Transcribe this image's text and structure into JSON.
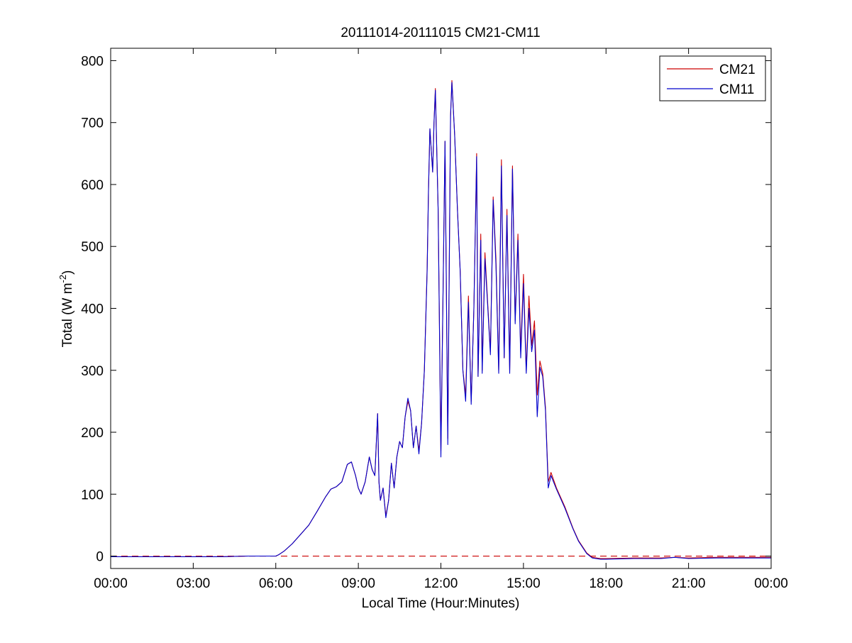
{
  "chart_data": {
    "type": "line",
    "title": "20111014-20111015 CM21-CM11",
    "xlabel": "Local Time (Hour:Minutes)",
    "ylabel_main": "Total (W m",
    "ylabel_sup": "-2",
    "ylabel_close": ")",
    "xlim": [
      0,
      24
    ],
    "ylim": [
      -20,
      820
    ],
    "x_ticks": [
      {
        "value": 0,
        "label": "00:00"
      },
      {
        "value": 3,
        "label": "03:00"
      },
      {
        "value": 6,
        "label": "06:00"
      },
      {
        "value": 9,
        "label": "09:00"
      },
      {
        "value": 12,
        "label": "12:00"
      },
      {
        "value": 15,
        "label": "15:00"
      },
      {
        "value": 18,
        "label": "18:00"
      },
      {
        "value": 21,
        "label": "21:00"
      },
      {
        "value": 24,
        "label": "00:00"
      }
    ],
    "y_ticks": [
      {
        "value": 0,
        "label": "0"
      },
      {
        "value": 100,
        "label": "100"
      },
      {
        "value": 200,
        "label": "200"
      },
      {
        "value": 300,
        "label": "300"
      },
      {
        "value": 400,
        "label": "400"
      },
      {
        "value": 500,
        "label": "500"
      },
      {
        "value": 600,
        "label": "600"
      },
      {
        "value": 700,
        "label": "700"
      },
      {
        "value": 800,
        "label": "800"
      }
    ],
    "grid": false,
    "legend_position": "top-right",
    "reference_line": {
      "y": 0,
      "style": "dashed",
      "color": "#cc0000"
    },
    "series": [
      {
        "name": "CM21",
        "color": "#cc0000",
        "points": [
          [
            0,
            -1
          ],
          [
            1,
            -1
          ],
          [
            2,
            -1
          ],
          [
            3,
            -1
          ],
          [
            4,
            -1
          ],
          [
            5,
            0
          ],
          [
            6,
            0
          ],
          [
            6.1,
            2
          ],
          [
            6.3,
            8
          ],
          [
            6.6,
            20
          ],
          [
            6.9,
            35
          ],
          [
            7.2,
            50
          ],
          [
            7.5,
            72
          ],
          [
            7.8,
            95
          ],
          [
            8.0,
            108
          ],
          [
            8.2,
            112
          ],
          [
            8.4,
            120
          ],
          [
            8.6,
            148
          ],
          [
            8.75,
            152
          ],
          [
            8.9,
            130
          ],
          [
            9.0,
            110
          ],
          [
            9.1,
            100
          ],
          [
            9.25,
            120
          ],
          [
            9.4,
            160
          ],
          [
            9.5,
            140
          ],
          [
            9.6,
            130
          ],
          [
            9.7,
            230
          ],
          [
            9.75,
            120
          ],
          [
            9.8,
            90
          ],
          [
            9.9,
            110
          ],
          [
            10.0,
            65
          ],
          [
            10.1,
            90
          ],
          [
            10.2,
            150
          ],
          [
            10.3,
            110
          ],
          [
            10.4,
            160
          ],
          [
            10.5,
            185
          ],
          [
            10.6,
            175
          ],
          [
            10.7,
            225
          ],
          [
            10.8,
            250
          ],
          [
            10.9,
            235
          ],
          [
            11.0,
            175
          ],
          [
            11.1,
            210
          ],
          [
            11.2,
            170
          ],
          [
            11.3,
            215
          ],
          [
            11.4,
            300
          ],
          [
            11.5,
            465
          ],
          [
            11.55,
            590
          ],
          [
            11.6,
            690
          ],
          [
            11.7,
            620
          ],
          [
            11.75,
            700
          ],
          [
            11.8,
            755
          ],
          [
            11.9,
            560
          ],
          [
            12.0,
            170
          ],
          [
            12.1,
            500
          ],
          [
            12.15,
            670
          ],
          [
            12.25,
            190
          ],
          [
            12.35,
            710
          ],
          [
            12.4,
            768
          ],
          [
            12.5,
            680
          ],
          [
            12.6,
            560
          ],
          [
            12.7,
            460
          ],
          [
            12.8,
            300
          ],
          [
            12.9,
            260
          ],
          [
            13.0,
            420
          ],
          [
            13.1,
            250
          ],
          [
            13.2,
            400
          ],
          [
            13.3,
            650
          ],
          [
            13.35,
            290
          ],
          [
            13.45,
            520
          ],
          [
            13.5,
            300
          ],
          [
            13.6,
            490
          ],
          [
            13.7,
            410
          ],
          [
            13.8,
            330
          ],
          [
            13.9,
            580
          ],
          [
            14.0,
            480
          ],
          [
            14.1,
            300
          ],
          [
            14.2,
            640
          ],
          [
            14.3,
            320
          ],
          [
            14.4,
            560
          ],
          [
            14.5,
            300
          ],
          [
            14.6,
            630
          ],
          [
            14.7,
            380
          ],
          [
            14.8,
            520
          ],
          [
            14.9,
            330
          ],
          [
            15.0,
            455
          ],
          [
            15.1,
            300
          ],
          [
            15.2,
            420
          ],
          [
            15.3,
            340
          ],
          [
            15.4,
            380
          ],
          [
            15.5,
            260
          ],
          [
            15.6,
            315
          ],
          [
            15.7,
            295
          ],
          [
            15.8,
            240
          ],
          [
            15.85,
            180
          ],
          [
            15.9,
            120
          ],
          [
            16.0,
            135
          ],
          [
            16.2,
            110
          ],
          [
            16.5,
            80
          ],
          [
            16.8,
            45
          ],
          [
            17.0,
            25
          ],
          [
            17.3,
            5
          ],
          [
            17.5,
            -2
          ],
          [
            17.8,
            -4
          ],
          [
            18,
            -4
          ],
          [
            19,
            -3
          ],
          [
            20,
            -3
          ],
          [
            20.5,
            -2
          ],
          [
            21,
            -3
          ],
          [
            22,
            -2
          ],
          [
            23,
            -2
          ],
          [
            24,
            -2
          ]
        ]
      },
      {
        "name": "CM11",
        "color": "#0000cc",
        "points": [
          [
            0,
            -1
          ],
          [
            1,
            -1
          ],
          [
            2,
            -1
          ],
          [
            3,
            -1
          ],
          [
            4,
            -1
          ],
          [
            5,
            0
          ],
          [
            6,
            0
          ],
          [
            6.1,
            2
          ],
          [
            6.3,
            8
          ],
          [
            6.6,
            20
          ],
          [
            6.9,
            35
          ],
          [
            7.2,
            50
          ],
          [
            7.5,
            72
          ],
          [
            7.8,
            95
          ],
          [
            8.0,
            108
          ],
          [
            8.2,
            112
          ],
          [
            8.4,
            120
          ],
          [
            8.6,
            148
          ],
          [
            8.75,
            152
          ],
          [
            8.9,
            130
          ],
          [
            9.0,
            110
          ],
          [
            9.1,
            100
          ],
          [
            9.25,
            120
          ],
          [
            9.4,
            160
          ],
          [
            9.5,
            140
          ],
          [
            9.6,
            130
          ],
          [
            9.7,
            230
          ],
          [
            9.75,
            120
          ],
          [
            9.8,
            90
          ],
          [
            9.9,
            110
          ],
          [
            10.0,
            62
          ],
          [
            10.1,
            90
          ],
          [
            10.2,
            150
          ],
          [
            10.3,
            110
          ],
          [
            10.4,
            160
          ],
          [
            10.5,
            185
          ],
          [
            10.6,
            175
          ],
          [
            10.7,
            225
          ],
          [
            10.8,
            255
          ],
          [
            10.9,
            235
          ],
          [
            11.0,
            175
          ],
          [
            11.1,
            210
          ],
          [
            11.2,
            165
          ],
          [
            11.3,
            215
          ],
          [
            11.4,
            300
          ],
          [
            11.5,
            460
          ],
          [
            11.55,
            590
          ],
          [
            11.6,
            690
          ],
          [
            11.7,
            620
          ],
          [
            11.75,
            700
          ],
          [
            11.8,
            752
          ],
          [
            11.9,
            560
          ],
          [
            12.0,
            160
          ],
          [
            12.1,
            500
          ],
          [
            12.15,
            670
          ],
          [
            12.25,
            180
          ],
          [
            12.35,
            710
          ],
          [
            12.4,
            765
          ],
          [
            12.5,
            680
          ],
          [
            12.6,
            560
          ],
          [
            12.7,
            460
          ],
          [
            12.8,
            300
          ],
          [
            12.9,
            250
          ],
          [
            13.0,
            410
          ],
          [
            13.1,
            245
          ],
          [
            13.2,
            400
          ],
          [
            13.3,
            645
          ],
          [
            13.35,
            290
          ],
          [
            13.45,
            510
          ],
          [
            13.5,
            295
          ],
          [
            13.6,
            480
          ],
          [
            13.7,
            405
          ],
          [
            13.8,
            325
          ],
          [
            13.9,
            575
          ],
          [
            14.0,
            470
          ],
          [
            14.1,
            295
          ],
          [
            14.2,
            630
          ],
          [
            14.3,
            320
          ],
          [
            14.4,
            550
          ],
          [
            14.5,
            295
          ],
          [
            14.6,
            625
          ],
          [
            14.7,
            375
          ],
          [
            14.8,
            510
          ],
          [
            14.9,
            320
          ],
          [
            15.0,
            440
          ],
          [
            15.1,
            295
          ],
          [
            15.2,
            400
          ],
          [
            15.3,
            330
          ],
          [
            15.4,
            365
          ],
          [
            15.5,
            225
          ],
          [
            15.6,
            305
          ],
          [
            15.7,
            290
          ],
          [
            15.8,
            235
          ],
          [
            15.85,
            175
          ],
          [
            15.9,
            110
          ],
          [
            16.0,
            130
          ],
          [
            16.2,
            108
          ],
          [
            16.5,
            78
          ],
          [
            16.8,
            44
          ],
          [
            17.0,
            24
          ],
          [
            17.3,
            4
          ],
          [
            17.5,
            -3
          ],
          [
            17.8,
            -5
          ],
          [
            18,
            -5
          ],
          [
            19,
            -4
          ],
          [
            20,
            -4
          ],
          [
            20.5,
            -2
          ],
          [
            21,
            -4
          ],
          [
            22,
            -3
          ],
          [
            23,
            -3
          ],
          [
            24,
            -3
          ]
        ]
      }
    ]
  }
}
